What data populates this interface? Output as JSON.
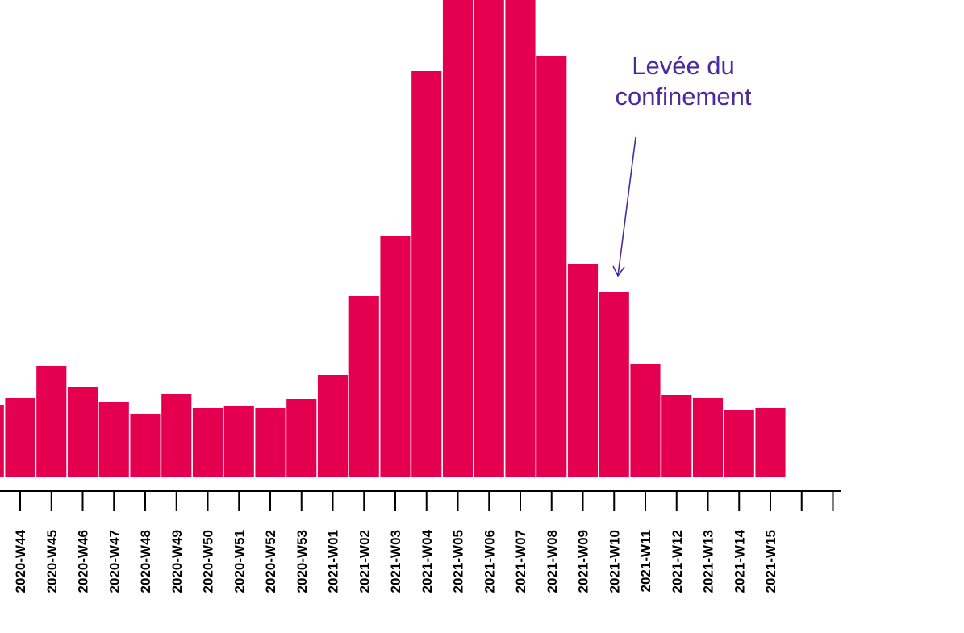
{
  "chart_data": {
    "type": "bar",
    "title": "",
    "xlabel": "",
    "ylabel": "",
    "categories": [
      "",
      "2020-W44",
      "2020-W45",
      "2020-W46",
      "2020-W47",
      "2020-W48",
      "2020-W49",
      "2020-W50",
      "2020-W51",
      "2020-W52",
      "2020-W53",
      "2021-W01",
      "2021-W02",
      "2021-W03",
      "2021-W04",
      "2021-W05",
      "2021-W06",
      "2021-W07",
      "2021-W08",
      "2021-W09",
      "2021-W10",
      "2021-W11",
      "2021-W12",
      "2021-W13",
      "2021-W14",
      "2021-W15"
    ],
    "values": [
      90,
      98,
      138,
      112,
      93,
      79,
      103,
      86,
      88,
      86,
      97,
      127,
      225,
      299,
      504,
      600,
      600,
      600,
      523,
      265,
      230,
      141,
      102,
      98,
      84,
      86
    ],
    "ylim": [
      0,
      592
    ],
    "y_axis_shown": false,
    "grid": false,
    "extra_empty_ticks": 2,
    "bar_color": "#e4004f",
    "annotation": {
      "lines": [
        "Levée du",
        "confinement"
      ],
      "target_category": "2021-W10",
      "color": "#4a2a9c"
    }
  }
}
